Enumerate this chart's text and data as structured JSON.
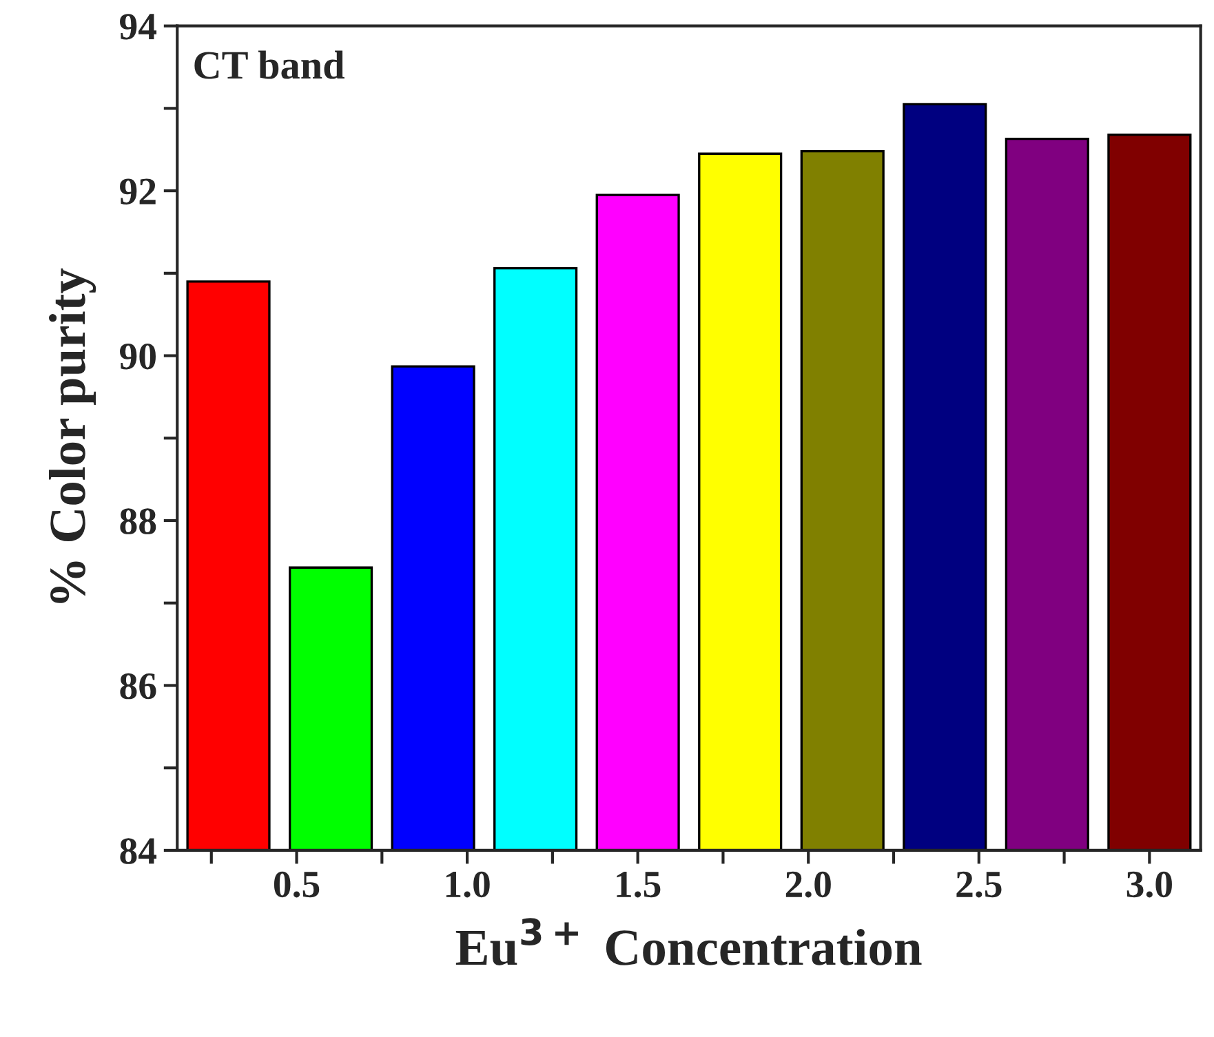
{
  "chart_data": {
    "type": "bar",
    "xlabel": "Eu$^{3+}$ Concentration",
    "ylabel": "% Color purity",
    "annotations": [
      "CT band"
    ],
    "x": [
      0.3,
      0.6,
      0.9,
      1.2,
      1.5,
      1.8,
      2.1,
      2.4,
      2.7,
      3.0
    ],
    "values": [
      90.9,
      87.43,
      89.87,
      91.06,
      91.95,
      92.45,
      92.48,
      93.05,
      92.63,
      92.68
    ],
    "colors": [
      "#ff0000",
      "#00ff00",
      "#0000ff",
      "#00ffff",
      "#ff00ff",
      "#ffff00",
      "#808000",
      "#000080",
      "#800080",
      "#800000"
    ],
    "xlim": [
      0.15,
      3.15
    ],
    "xticks": [
      {
        "value": 0.25,
        "label": null
      },
      {
        "value": 0.5,
        "label": "0.5"
      },
      {
        "value": 0.75,
        "label": null
      },
      {
        "value": 1.0,
        "label": "1.0"
      },
      {
        "value": 1.25,
        "label": null
      },
      {
        "value": 1.5,
        "label": "1.5"
      },
      {
        "value": 1.75,
        "label": null
      },
      {
        "value": 2.0,
        "label": "2.0"
      },
      {
        "value": 2.25,
        "label": null
      },
      {
        "value": 2.5,
        "label": "2.5"
      },
      {
        "value": 2.75,
        "label": null
      },
      {
        "value": 3.0,
        "label": "3.0"
      }
    ],
    "ylim": [
      84,
      94
    ],
    "yticks": [
      84,
      {
        "value": 85,
        "label": null
      },
      86,
      {
        "value": 87,
        "label": null
      },
      88,
      {
        "value": 89,
        "label": null
      },
      90,
      {
        "value": 91,
        "label": null
      },
      92,
      {
        "value": 93,
        "label": null
      },
      94
    ],
    "grid": false,
    "legend": false
  }
}
